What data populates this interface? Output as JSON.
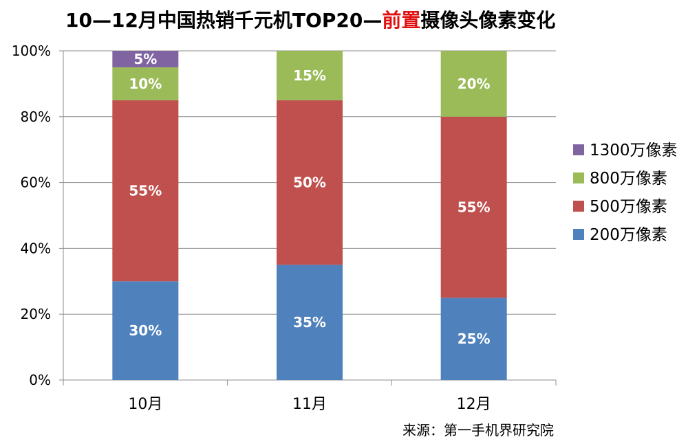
{
  "title": {
    "part1": "10—12月中国热销千元机TOP20—",
    "highlight": "前置",
    "part2": "摄像头像素变化"
  },
  "source": "来源：第一手机界研究院",
  "colors": {
    "200": "#4f81bd",
    "500": "#c0504d",
    "800": "#9bbb59",
    "1300": "#8064a2"
  },
  "chart_data": {
    "type": "bar",
    "stacked": true,
    "categories": [
      "10月",
      "11月",
      "12月"
    ],
    "series": [
      {
        "name": "200万像素",
        "values": [
          30,
          35,
          25
        ],
        "labels": [
          "30%",
          "35%",
          "25%"
        ],
        "color": "#4f81bd"
      },
      {
        "name": "500万像素",
        "values": [
          55,
          50,
          55
        ],
        "labels": [
          "55%",
          "50%",
          "55%"
        ],
        "color": "#c0504d"
      },
      {
        "name": "800万像素",
        "values": [
          10,
          15,
          20
        ],
        "labels": [
          "10%",
          "15%",
          "20%"
        ],
        "color": "#9bbb59"
      },
      {
        "name": "1300万像素",
        "values": [
          5,
          0,
          0
        ],
        "labels": [
          "5%",
          "",
          ""
        ],
        "color": "#8064a2"
      }
    ],
    "legend_order": [
      "1300万像素",
      "800万像素",
      "500万像素",
      "200万像素"
    ],
    "y_ticks": [
      "0%",
      "20%",
      "40%",
      "60%",
      "80%",
      "100%"
    ],
    "ylim": [
      0,
      100
    ],
    "grid": true,
    "legend_position": "right"
  }
}
